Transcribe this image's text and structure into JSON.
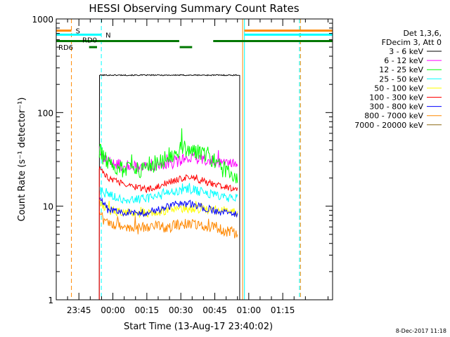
{
  "chart_data": {
    "type": "line",
    "title": "HESSI Observing Summary Count Rates",
    "xlabel": "Start Time (13-Aug-17 23:40:02)",
    "ylabel": "Count Rate (s⁻¹ detector⁻¹)",
    "yscale": "log",
    "ylim": [
      1,
      1000
    ],
    "xlim_minutes": [
      -25,
      97
    ],
    "x_ticks": [
      {
        "label": "23:45",
        "minutes": -15
      },
      {
        "label": "00:00",
        "minutes": 0
      },
      {
        "label": "00:15",
        "minutes": 15
      },
      {
        "label": "00:30",
        "minutes": 30
      },
      {
        "label": "00:45",
        "minutes": 45
      },
      {
        "label": "01:00",
        "minutes": 60
      },
      {
        "label": "01:15",
        "minutes": 75
      }
    ],
    "y_ticks": [
      {
        "label": "1",
        "value": 1
      },
      {
        "label": "10",
        "value": 10
      },
      {
        "label": "100",
        "value": 100
      },
      {
        "label": "1000",
        "value": 1000
      }
    ],
    "legend": {
      "placement": "right",
      "header": [
        "Det 1,3,6,",
        "FDecim 3, Att 0"
      ]
    },
    "series": [
      {
        "name": "3 - 6 keV",
        "color": "#000000",
        "x": [
          -6,
          -5.9,
          0,
          10,
          20,
          30,
          40,
          55,
          56
        ],
        "y": [
          1,
          250,
          252,
          250,
          253,
          250,
          252,
          250,
          1
        ]
      },
      {
        "name": "6 - 12 keV",
        "color": "#ff00ff",
        "x": [
          -6,
          -2,
          5,
          15,
          25,
          30,
          35,
          45,
          55
        ],
        "y": [
          35,
          30,
          27,
          26,
          28,
          31,
          33,
          30,
          28
        ]
      },
      {
        "name": "12 - 25 keV",
        "color": "#00ff00",
        "x": [
          -6,
          -2,
          5,
          15,
          25,
          30,
          35,
          45,
          55
        ],
        "y": [
          40,
          28,
          24,
          24,
          35,
          42,
          40,
          30,
          20
        ]
      },
      {
        "name": "25 - 50 keV",
        "color": "#00ffff",
        "x": [
          -6,
          -2,
          5,
          15,
          25,
          30,
          35,
          45,
          55
        ],
        "y": [
          15,
          13,
          12,
          12,
          14,
          15,
          15,
          13,
          12
        ]
      },
      {
        "name": "50 - 100 keV",
        "color": "#ffff00",
        "x": [
          -6,
          -2,
          5,
          15,
          25,
          30,
          35,
          45,
          55
        ],
        "y": [
          11,
          9,
          8.5,
          8.5,
          9,
          9.5,
          9.5,
          9,
          8.5
        ]
      },
      {
        "name": "100 - 300 keV",
        "color": "#ff0000",
        "x": [
          -6,
          -2,
          5,
          15,
          25,
          30,
          35,
          45,
          55
        ],
        "y": [
          26,
          20,
          17,
          15,
          18,
          20,
          20,
          17,
          15
        ]
      },
      {
        "name": "300 - 800 keV",
        "color": "#0000ff",
        "x": [
          -6,
          -2,
          5,
          15,
          25,
          30,
          35,
          45,
          55
        ],
        "y": [
          12,
          9,
          8.5,
          8.5,
          10,
          11,
          10.5,
          9,
          8
        ]
      },
      {
        "name": "800 - 7000 keV",
        "color": "#ff8800",
        "x": [
          -6,
          -2,
          5,
          15,
          25,
          30,
          35,
          45,
          55
        ],
        "y": [
          8,
          6.5,
          6,
          6,
          6,
          6.5,
          6.5,
          6,
          5
        ]
      },
      {
        "name": "7000 - 20000 keV",
        "color": "#8b6914",
        "x": [],
        "y": []
      }
    ],
    "flags": [
      {
        "label": "S",
        "color": "#ff8800",
        "value": 750,
        "segments": [
          [
            -25,
            -18.3
          ],
          [
            58,
            97
          ]
        ]
      },
      {
        "label": "N",
        "color": "#00ffff",
        "value": 680,
        "segments": [
          [
            -25,
            -5.1
          ],
          [
            58,
            97
          ]
        ]
      },
      {
        "label": "RD6",
        "color": "#007700",
        "value": 500,
        "segments": [
          [
            -10.5,
            -7
          ]
        ]
      },
      {
        "label": "RD0",
        "color": "#007700",
        "value": 580,
        "segments": [
          [
            -25,
            29.3
          ],
          [
            44.3,
            97
          ]
        ]
      },
      {
        "label": "",
        "color": "#007700",
        "value": 500,
        "segments": [
          [
            29.5,
            35
          ]
        ]
      }
    ],
    "markers": [
      {
        "minutes": -25,
        "color": "#00ffff",
        "style": "solid"
      },
      {
        "minutes": -18.3,
        "color": "#ff8800",
        "style": "dashed"
      },
      {
        "minutes": -5.1,
        "color": "#00ffff",
        "style": "dashed"
      },
      {
        "minutes": 57.3,
        "color": "#ff8800",
        "style": "solid"
      },
      {
        "minutes": 58.1,
        "color": "#00ffff",
        "style": "solid"
      },
      {
        "minutes": 82.4,
        "color": "#00ffff",
        "style": "dashed"
      },
      {
        "minutes": 82.8,
        "color": "#ff8800",
        "style": "dashed"
      }
    ],
    "footer": "8-Dec-2017 11:18"
  }
}
